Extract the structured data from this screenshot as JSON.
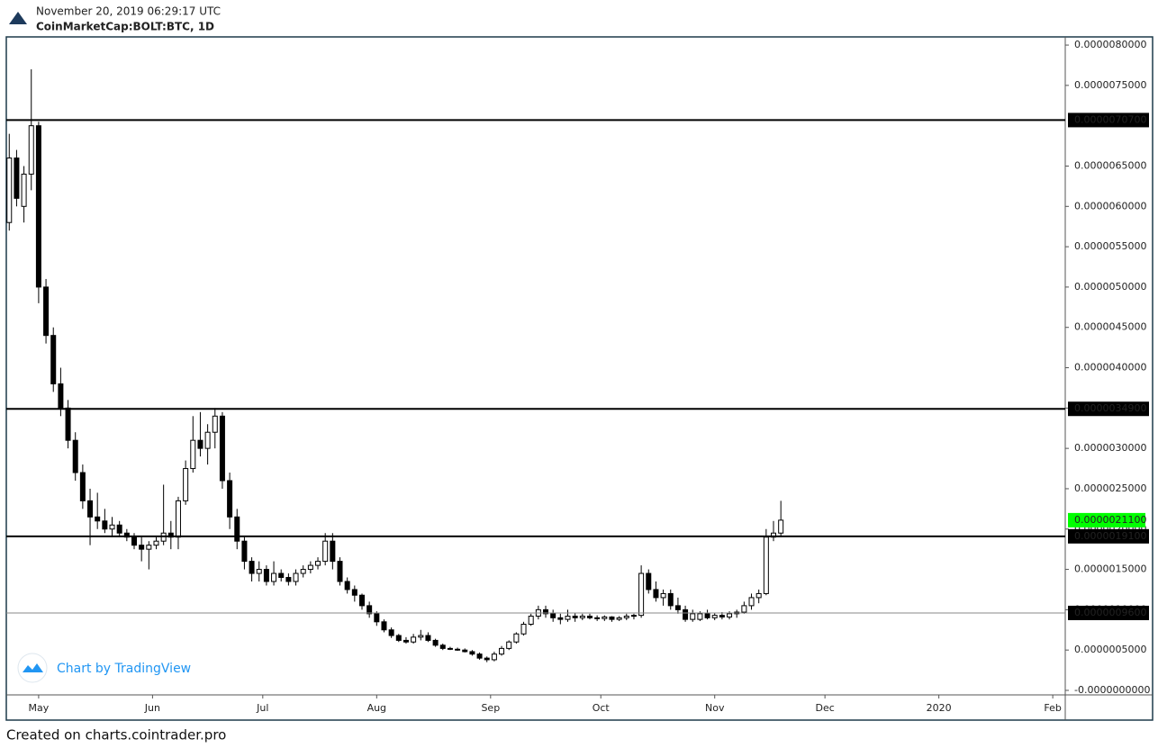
{
  "header": {
    "timestamp": "November 20, 2019 06:29:17 UTC",
    "symbol": "CoinMarketCap:BOLT:BTC, 1D"
  },
  "branding": "Chart by TradingView",
  "footer": "Created on charts.cointrader.pro",
  "chart_data": {
    "type": "candlestick",
    "xlim": [
      -8.8,
      279.4
    ],
    "xticks": [
      {
        "value": 0,
        "label": "May"
      },
      {
        "value": 31,
        "label": "Jun"
      },
      {
        "value": 61,
        "label": "Jul"
      },
      {
        "value": 92,
        "label": "Aug"
      },
      {
        "value": 123,
        "label": "Sep"
      },
      {
        "value": 153,
        "label": "Oct"
      },
      {
        "value": 184,
        "label": "Nov"
      },
      {
        "value": 214,
        "label": "Dec"
      },
      {
        "value": 245,
        "label": "2020"
      },
      {
        "value": 276,
        "label": "Feb"
      }
    ],
    "ylim": [
      -5.6e-08,
      8.09e-06
    ],
    "yticks": [
      {
        "value": 0,
        "label": "-0.0000000000"
      },
      {
        "value": 5e-07,
        "label": "0.0000005000"
      },
      {
        "value": 1e-06,
        "label": "0.0000010000"
      },
      {
        "value": 1.5e-06,
        "label": "0.0000015000"
      },
      {
        "value": 2e-06,
        "label": "0.0000020000"
      },
      {
        "value": 2.5e-06,
        "label": "0.0000025000"
      },
      {
        "value": 3e-06,
        "label": "0.0000030000"
      },
      {
        "value": 3.5e-06,
        "label": "0.0000035000"
      },
      {
        "value": 4e-06,
        "label": "0.0000040000"
      },
      {
        "value": 4.5e-06,
        "label": "0.0000045000"
      },
      {
        "value": 5e-06,
        "label": "0.0000050000"
      },
      {
        "value": 5.5e-06,
        "label": "0.0000055000"
      },
      {
        "value": 6e-06,
        "label": "0.0000060000"
      },
      {
        "value": 6.5e-06,
        "label": "0.0000065000"
      },
      {
        "value": 7.5e-06,
        "label": "0.0000075000"
      },
      {
        "value": 8e-06,
        "label": "0.0000080000"
      }
    ],
    "levels": [
      {
        "value": 7.07e-06,
        "label": "0.0000070700",
        "color": "#000000"
      },
      {
        "value": 3.49e-06,
        "label": "0.0000034900",
        "color": "#000000"
      },
      {
        "value": 1.91e-06,
        "label": "0.0000019100",
        "color": "#000000"
      },
      {
        "value": 9.6e-07,
        "label": "0.0000009600",
        "color": "#888888"
      }
    ],
    "last_price": {
      "value": 2.11e-06,
      "label": "0.0000021100",
      "color": "#00ff00"
    },
    "up_color": "#ffffff",
    "down_color": "#000000",
    "x": [
      -8,
      -6,
      -4,
      -2,
      0,
      2,
      4,
      6,
      8,
      10,
      12,
      14,
      16,
      18,
      20,
      22,
      24,
      26,
      28,
      30,
      32,
      34,
      36,
      38,
      40,
      42,
      44,
      46,
      48,
      50,
      52,
      54,
      56,
      58,
      60,
      62,
      64,
      66,
      68,
      70,
      72,
      74,
      76,
      78,
      80,
      82,
      84,
      86,
      88,
      90,
      92,
      94,
      96,
      98,
      100,
      102,
      104,
      106,
      108,
      110,
      112,
      114,
      116,
      118,
      120,
      122,
      124,
      126,
      128,
      130,
      132,
      134,
      136,
      138,
      140,
      142,
      144,
      146,
      148,
      150,
      152,
      154,
      156,
      158,
      160,
      162,
      164,
      166,
      168,
      170,
      172,
      174,
      176,
      178,
      180,
      182,
      184,
      186,
      188,
      190,
      192,
      194,
      196,
      198,
      200,
      202
    ],
    "open": [
      5.8e-06,
      6.6e-06,
      6e-06,
      6.4e-06,
      7e-06,
      5e-06,
      4.4e-06,
      3.8e-06,
      3.5e-06,
      3.1e-06,
      2.7e-06,
      2.35e-06,
      2.15e-06,
      2.1e-06,
      2e-06,
      2.05e-06,
      1.95e-06,
      1.9e-06,
      1.8e-06,
      1.75e-06,
      1.8e-06,
      1.85e-06,
      1.95e-06,
      1.9e-06,
      2.35e-06,
      2.75e-06,
      3.1e-06,
      3e-06,
      3.2e-06,
      3.4e-06,
      2.6e-06,
      2.15e-06,
      1.85e-06,
      1.6e-06,
      1.45e-06,
      1.5e-06,
      1.35e-06,
      1.45e-06,
      1.4e-06,
      1.35e-06,
      1.45e-06,
      1.5e-06,
      1.55e-06,
      1.6e-06,
      1.85e-06,
      1.6e-06,
      1.35e-06,
      1.25e-06,
      1.18e-06,
      1.05e-06,
      9.5e-07,
      8.5e-07,
      7.5e-07,
      6.8e-07,
      6.2e-07,
      6e-07,
      6.6e-07,
      6.8e-07,
      6.2e-07,
      5.6e-07,
      5.2e-07,
      5.1e-07,
      5e-07,
      4.8e-07,
      4.5e-07,
      4e-07,
      3.8e-07,
      4.5e-07,
      5.2e-07,
      6e-07,
      7e-07,
      8.2e-07,
      9.2e-07,
      1e-06,
      9.5e-07,
      9e-07,
      8.8e-07,
      9.2e-07,
      9e-07,
      9.2e-07,
      9e-07,
      8.9e-07,
      9.1e-07,
      8.8e-07,
      9e-07,
      9.2e-07,
      9.3e-07,
      1.45e-06,
      1.25e-06,
      1.15e-06,
      1.2e-06,
      1.05e-06,
      1e-06,
      8.8e-07,
      8.8e-07,
      9.5e-07,
      9e-07,
      9.3e-07,
      9.1e-07,
      9.5e-07,
      9.7e-07,
      1.05e-06,
      1.15e-06,
      1.2e-06,
      1.9e-06,
      1.95e-06
    ],
    "high": [
      6.9e-06,
      6.7e-06,
      6.5e-06,
      7.7e-06,
      7.05e-06,
      5.1e-06,
      4.5e-06,
      4e-06,
      3.6e-06,
      3.2e-06,
      2.8e-06,
      2.5e-06,
      2.45e-06,
      2.25e-06,
      2.15e-06,
      2.1e-06,
      2e-06,
      1.95e-06,
      1.9e-06,
      1.85e-06,
      1.9e-06,
      2.55e-06,
      2.1e-06,
      2.4e-06,
      2.85e-06,
      3.4e-06,
      3.45e-06,
      3.3e-06,
      3.5e-06,
      3.45e-06,
      2.7e-06,
      2.25e-06,
      1.9e-06,
      1.65e-06,
      1.6e-06,
      1.55e-06,
      1.6e-06,
      1.5e-06,
      1.45e-06,
      1.5e-06,
      1.55e-06,
      1.6e-06,
      1.65e-06,
      1.95e-06,
      1.95e-06,
      1.65e-06,
      1.4e-06,
      1.3e-06,
      1.2e-06,
      1.1e-06,
      9.8e-07,
      8.8e-07,
      7.8e-07,
      7e-07,
      6.6e-07,
      7e-07,
      7.5e-07,
      7.2e-07,
      6.4e-07,
      5.8e-07,
      5.4e-07,
      5.3e-07,
      5.2e-07,
      5e-07,
      4.7e-07,
      4.2e-07,
      4.8e-07,
      5.5e-07,
      6.2e-07,
      7.2e-07,
      8.5e-07,
      9.5e-07,
      1.05e-06,
      1.05e-06,
      1e-06,
      9.5e-07,
      1e-06,
      9.6e-07,
      9.5e-07,
      9.5e-07,
      9.3e-07,
      9.3e-07,
      9.2e-07,
      9.2e-07,
      9.5e-07,
      9.5e-07,
      1.55e-06,
      1.5e-06,
      1.35e-06,
      1.25e-06,
      1.25e-06,
      1.15e-06,
      1.05e-06,
      1e-06,
      9.8e-07,
      1e-06,
      9.6e-07,
      9.7e-07,
      9.8e-07,
      1e-06,
      1.1e-06,
      1.2e-06,
      1.25e-06,
      2e-06,
      2.1e-06,
      2.35e-06
    ],
    "low": [
      5.7e-06,
      6e-06,
      5.8e-06,
      6.2e-06,
      4.8e-06,
      4.3e-06,
      3.7e-06,
      3.4e-06,
      3e-06,
      2.6e-06,
      2.25e-06,
      1.8e-06,
      2e-06,
      1.95e-06,
      1.9e-06,
      1.9e-06,
      1.85e-06,
      1.75e-06,
      1.6e-06,
      1.5e-06,
      1.75e-06,
      1.8e-06,
      1.75e-06,
      1.75e-06,
      2.3e-06,
      2.7e-06,
      2.9e-06,
      2.8e-06,
      3e-06,
      2.5e-06,
      2e-06,
      1.75e-06,
      1.5e-06,
      1.35e-06,
      1.35e-06,
      1.3e-06,
      1.3e-06,
      1.35e-06,
      1.3e-06,
      1.3e-06,
      1.4e-06,
      1.45e-06,
      1.5e-06,
      1.55e-06,
      1.5e-06,
      1.3e-06,
      1.2e-06,
      1.1e-06,
      1e-06,
      9e-07,
      8e-07,
      7.2e-07,
      6.5e-07,
      6e-07,
      5.8e-07,
      5.8e-07,
      6.2e-07,
      6e-07,
      5.4e-07,
      5e-07,
      5e-07,
      4.9e-07,
      4.7e-07,
      4.3e-07,
      3.8e-07,
      3.5e-07,
      3.6e-07,
      4.3e-07,
      5e-07,
      5.8e-07,
      6.8e-07,
      8e-07,
      8.8e-07,
      9e-07,
      8.5e-07,
      8.2e-07,
      8.5e-07,
      8.5e-07,
      8.7e-07,
      8.8e-07,
      8.6e-07,
      8.6e-07,
      8.5e-07,
      8.6e-07,
      8.7e-07,
      8.8e-07,
      9e-07,
      1.2e-06,
      1.1e-06,
      1.05e-06,
      1e-06,
      9.5e-07,
      8.5e-07,
      8.5e-07,
      8.6e-07,
      8.8e-07,
      8.7e-07,
      8.8e-07,
      8.8e-07,
      9e-07,
      9.5e-07,
      1e-06,
      1.08e-06,
      1.18e-06,
      1.85e-06,
      1.9e-06
    ],
    "close": [
      6.6e-06,
      6.1e-06,
      6.4e-06,
      7e-06,
      5e-06,
      4.4e-06,
      3.8e-06,
      3.5e-06,
      3.1e-06,
      2.7e-06,
      2.35e-06,
      2.15e-06,
      2.1e-06,
      2e-06,
      2.05e-06,
      1.95e-06,
      1.9e-06,
      1.8e-06,
      1.75e-06,
      1.8e-06,
      1.85e-06,
      1.95e-06,
      1.9e-06,
      2.35e-06,
      2.75e-06,
      3.1e-06,
      3e-06,
      3.2e-06,
      3.4e-06,
      2.6e-06,
      2.15e-06,
      1.85e-06,
      1.6e-06,
      1.45e-06,
      1.5e-06,
      1.35e-06,
      1.45e-06,
      1.4e-06,
      1.35e-06,
      1.45e-06,
      1.5e-06,
      1.55e-06,
      1.6e-06,
      1.85e-06,
      1.6e-06,
      1.35e-06,
      1.25e-06,
      1.18e-06,
      1.05e-06,
      9.5e-07,
      8.5e-07,
      7.5e-07,
      6.8e-07,
      6.2e-07,
      6e-07,
      6.6e-07,
      6.8e-07,
      6.2e-07,
      5.6e-07,
      5.2e-07,
      5.1e-07,
      5e-07,
      4.8e-07,
      4.5e-07,
      4e-07,
      3.8e-07,
      4.5e-07,
      5.2e-07,
      6e-07,
      7e-07,
      8.2e-07,
      9.2e-07,
      1e-06,
      9.5e-07,
      9e-07,
      8.8e-07,
      9.2e-07,
      9e-07,
      9.2e-07,
      9e-07,
      8.9e-07,
      9.1e-07,
      8.8e-07,
      9e-07,
      9.2e-07,
      9.3e-07,
      1.45e-06,
      1.25e-06,
      1.15e-06,
      1.2e-06,
      1.05e-06,
      1e-06,
      8.8e-07,
      9.5e-07,
      9.5e-07,
      9e-07,
      9.3e-07,
      9.1e-07,
      9.5e-07,
      9.7e-07,
      1.05e-06,
      1.15e-06,
      1.2e-06,
      1.9e-06,
      1.95e-06,
      2.11e-06
    ]
  }
}
